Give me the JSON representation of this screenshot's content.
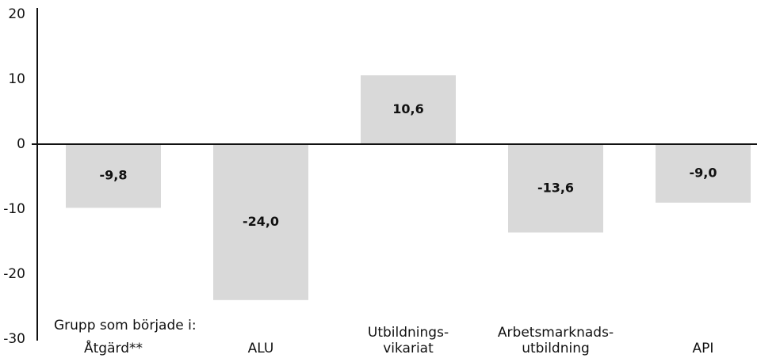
{
  "chart_data": {
    "type": "bar",
    "annotation": "Grupp som började i:",
    "categories": [
      [
        "Åtgärd**"
      ],
      [
        "ALU"
      ],
      [
        "Utbildnings-",
        "vikariat"
      ],
      [
        "Arbetsmarknads-",
        "utbildning"
      ],
      [
        "API"
      ]
    ],
    "values": [
      -9.8,
      -24.0,
      10.6,
      -13.6,
      -9.0
    ],
    "value_labels": [
      "-9,8",
      "-24,0",
      "10,6",
      "-13,6",
      "-9,0"
    ],
    "color": "#d9d9d9",
    "ylim": [
      -30,
      20
    ],
    "yticks": [
      20,
      10,
      0,
      -10,
      -20,
      -30
    ],
    "grid": false
  }
}
